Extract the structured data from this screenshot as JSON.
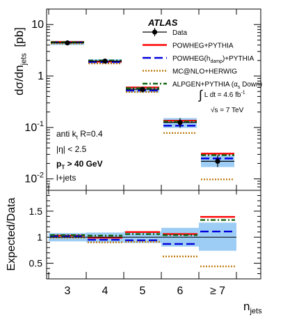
{
  "chart_data": [
    {
      "panel": "main",
      "type": "line",
      "y_scale": "log",
      "ylim": [
        0.006,
        20
      ],
      "xlabel": "n",
      "xlabel_sub": "jets",
      "ylabel_main": "dσ/dn",
      "ylabel_sub": "jets",
      "ylabel_unit": "[pb]",
      "yticks": [
        {
          "v": 0.01,
          "base": "10",
          "exp": "-2"
        },
        {
          "v": 0.1,
          "base": "10",
          "exp": "-1"
        },
        {
          "v": 1,
          "base": "1",
          "exp": ""
        },
        {
          "v": 10,
          "base": "10",
          "exp": ""
        }
      ],
      "categories": [
        "3",
        "4",
        "5",
        "6",
        "≥ 7"
      ],
      "data": {
        "name": "Data",
        "values": [
          4.4,
          1.95,
          0.55,
          0.125,
          0.022
        ],
        "band_lo": [
          4.0,
          1.78,
          0.48,
          0.098,
          0.017
        ],
        "band_hi": [
          4.8,
          2.12,
          0.62,
          0.152,
          0.029
        ],
        "band_color": "#9dcdf5"
      },
      "series": [
        {
          "name": "POWHEG+PYTHIA",
          "color": "#ff0000",
          "dash": "solid",
          "values": [
            4.6,
            1.9,
            0.6,
            0.135,
            0.031
          ]
        },
        {
          "name": "POWHEG(h_damp)+PYTHIA",
          "color": "#0000dd",
          "dash": "long",
          "values": [
            4.5,
            1.85,
            0.52,
            0.108,
            0.025
          ]
        },
        {
          "name": "MC@NLO+HERWIG",
          "color": "#c07f16",
          "dash": "dot",
          "values": [
            4.3,
            1.75,
            0.49,
            0.078,
            0.0098
          ]
        },
        {
          "name": "ALPGEN+PYTHIA",
          "color": "#116611",
          "dash": "dashdot",
          "values": [
            4.55,
            2.0,
            0.58,
            0.13,
            0.029
          ]
        }
      ],
      "legend_placement": "top-right"
    },
    {
      "panel": "ratio",
      "type": "line",
      "ylabel": "Expected/Data",
      "ylim": [
        0.2,
        1.9
      ],
      "yticks": [
        0.5,
        1,
        1.5
      ],
      "categories": [
        "3",
        "4",
        "5",
        "6",
        "≥ 7"
      ],
      "data_band": {
        "lo": [
          0.92,
          0.9,
          0.89,
          0.82,
          0.74
        ],
        "hi": [
          1.08,
          1.09,
          1.11,
          1.18,
          1.28
        ]
      },
      "data_points": [
        1.0,
        1.0,
        1.0,
        1.0,
        1.0
      ],
      "series": [
        {
          "name": "POWHEG+PYTHIA",
          "values": [
            1.03,
            0.99,
            1.1,
            1.06,
            1.39
          ]
        },
        {
          "name": "POWHEG(h_damp)+PYTHIA",
          "values": [
            1.02,
            0.95,
            0.94,
            0.87,
            1.11
          ]
        },
        {
          "name": "MC@NLO+HERWIG",
          "values": [
            0.99,
            0.9,
            0.91,
            0.63,
            0.44
          ]
        },
        {
          "name": "ALPGEN+PYTHIA",
          "values": [
            1.04,
            1.03,
            1.06,
            1.04,
            1.33
          ]
        }
      ]
    }
  ],
  "labels": {
    "experiment": "ATLAS",
    "lumi_integral": "∫",
    "lumi_prefix": "L dt = 4.6 fb",
    "lumi_exp": "-1",
    "sqrt_s": "√s = 7 TeV",
    "algo_prefix": "anti k",
    "algo_sub": "t",
    "algo_suffix": " R=0.4",
    "eta": "|η| < 2.5",
    "pt_prefix": "p",
    "pt_sub": "T",
    "pt_suffix": " > 40 GeV",
    "channel": "l+jets",
    "alpgen_suffix_open": " (α",
    "alpgen_suffix_sub": "s",
    "alpgen_suffix_close": " Down)"
  }
}
